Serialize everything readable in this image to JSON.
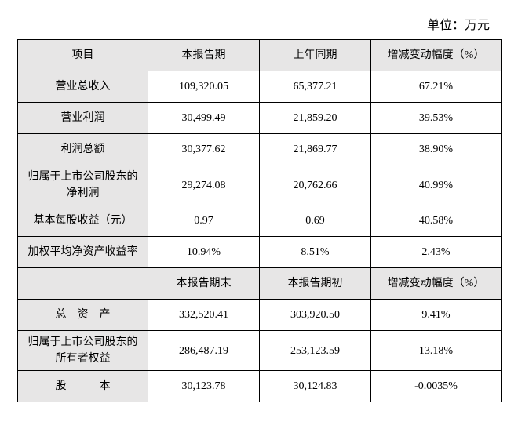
{
  "unit_label": "单位：万元",
  "table": {
    "header1": {
      "c0": "项目",
      "c1": "本报告期",
      "c2": "上年同期",
      "c3": "增减变动幅度（%）"
    },
    "rows1": [
      {
        "label": "营业总收入",
        "curr": "109,320.05",
        "prev": "65,377.21",
        "chg": "67.21%"
      },
      {
        "label": "营业利润",
        "curr": "30,499.49",
        "prev": "21,859.20",
        "chg": "39.53%"
      },
      {
        "label": "利润总额",
        "curr": "30,377.62",
        "prev": "21,869.77",
        "chg": "38.90%"
      },
      {
        "label": "归属于上市公司股东的净利润",
        "curr": "29,274.08",
        "prev": "20,762.66",
        "chg": "40.99%"
      },
      {
        "label": "基本每股收益（元）",
        "curr": "0.97",
        "prev": "0.69",
        "chg": "40.58%"
      },
      {
        "label": "加权平均净资产收益率",
        "curr": "10.94%",
        "prev": "8.51%",
        "chg": "2.43%"
      }
    ],
    "header2": {
      "c0": "",
      "c1": "本报告期末",
      "c2": "本报告期初",
      "c3": "增减变动幅度（%）"
    },
    "rows2": [
      {
        "label": "总　资　产",
        "curr": "332,520.41",
        "prev": "303,920.50",
        "chg": "9.41%"
      },
      {
        "label": "归属于上市公司股东的所有者权益",
        "curr": "286,487.19",
        "prev": "253,123.59",
        "chg": "13.18%"
      },
      {
        "label": "股　　　本",
        "curr": "30,123.78",
        "prev": "30,124.83",
        "chg": "-0.0035%"
      }
    ]
  },
  "colors": {
    "shaded_bg": "#e7e6e6",
    "border": "#000000",
    "text": "#000000",
    "background": "#ffffff"
  }
}
